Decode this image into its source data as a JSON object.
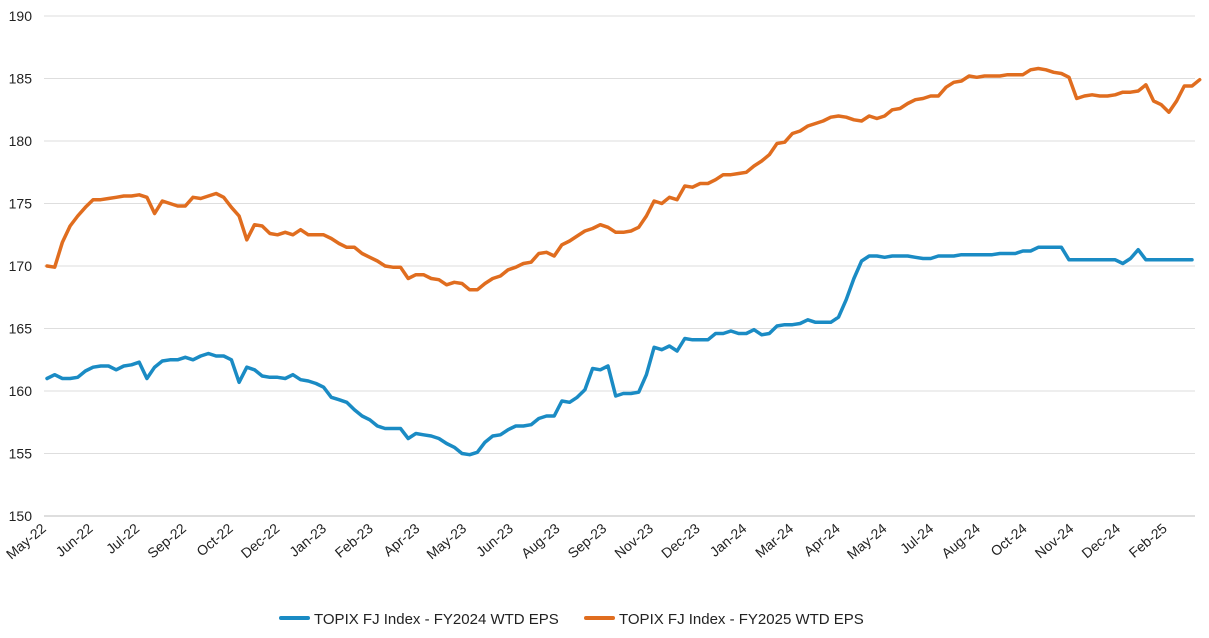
{
  "chart_data": {
    "type": "line",
    "title": "",
    "xlabel": "",
    "ylabel": "",
    "ylim": [
      150,
      190
    ],
    "yticks": [
      150,
      155,
      160,
      165,
      170,
      175,
      180,
      185,
      190
    ],
    "grid": "horizontal",
    "legend_position": "bottom-center",
    "x_tick_labels": [
      "May-22",
      "Jun-22",
      "Jul-22",
      "Sep-22",
      "Oct-22",
      "Dec-22",
      "Jan-23",
      "Feb-23",
      "Apr-23",
      "May-23",
      "Jun-23",
      "Aug-23",
      "Sep-23",
      "Nov-23",
      "Dec-23",
      "Jan-24",
      "Mar-24",
      "Apr-24",
      "May-24",
      "Jul-24",
      "Aug-24",
      "Oct-24",
      "Nov-24",
      "Dec-24",
      "Feb-25"
    ],
    "series": [
      {
        "name": "TOPIX FJ Index - FY2024 WTD EPS",
        "color": "#1a8bc4",
        "values": [
          161.0,
          161.3,
          161.0,
          161.0,
          161.1,
          161.6,
          161.9,
          162.0,
          162.0,
          161.7,
          162.0,
          162.1,
          162.3,
          161.0,
          161.9,
          162.4,
          162.5,
          162.5,
          162.7,
          162.5,
          162.8,
          163.0,
          162.8,
          162.8,
          162.5,
          160.7,
          161.9,
          161.7,
          161.2,
          161.1,
          161.1,
          161.0,
          161.3,
          160.9,
          160.8,
          160.6,
          160.3,
          159.5,
          159.3,
          159.1,
          158.5,
          158.0,
          157.7,
          157.2,
          157.0,
          157.0,
          157.0,
          156.2,
          156.6,
          156.5,
          156.4,
          156.2,
          155.8,
          155.5,
          155.0,
          154.9,
          155.1,
          155.9,
          156.4,
          156.5,
          156.9,
          157.2,
          157.2,
          157.3,
          157.8,
          158.0,
          158.0,
          159.2,
          159.1,
          159.5,
          160.1,
          161.8,
          161.7,
          162.0,
          159.6,
          159.8,
          159.8,
          159.9,
          161.3,
          163.5,
          163.3,
          163.6,
          163.2,
          164.2,
          164.1,
          164.1,
          164.1,
          164.6,
          164.6,
          164.8,
          164.6,
          164.6,
          164.9,
          164.5,
          164.6,
          165.2,
          165.3,
          165.3,
          165.4,
          165.7,
          165.5,
          165.5,
          165.5,
          165.9,
          167.3,
          169.0,
          170.4,
          170.8,
          170.8,
          170.7,
          170.8,
          170.8,
          170.8,
          170.7,
          170.6,
          170.6,
          170.8,
          170.8,
          170.8,
          170.9,
          170.9,
          170.9,
          170.9,
          170.9,
          171.0,
          171.0,
          171.0,
          171.2,
          171.2,
          171.5,
          171.5,
          171.5,
          171.5,
          170.5,
          170.5,
          170.5,
          170.5,
          170.5,
          170.5,
          170.5,
          170.2,
          170.6,
          171.3,
          170.5,
          170.5,
          170.5,
          170.5,
          170.5,
          170.5,
          170.5
        ]
      },
      {
        "name": "TOPIX FJ Index - FY2025 WTD EPS",
        "color": "#e06d1f",
        "values": [
          170.0,
          169.9,
          171.9,
          173.2,
          174.0,
          174.7,
          175.3,
          175.3,
          175.4,
          175.5,
          175.6,
          175.6,
          175.7,
          175.5,
          174.2,
          175.2,
          175.0,
          174.8,
          174.8,
          175.5,
          175.4,
          175.6,
          175.8,
          175.5,
          174.7,
          174.0,
          172.1,
          173.3,
          173.2,
          172.6,
          172.5,
          172.7,
          172.5,
          172.9,
          172.5,
          172.5,
          172.5,
          172.2,
          171.8,
          171.5,
          171.5,
          171.0,
          170.7,
          170.4,
          170.0,
          169.9,
          169.9,
          169.0,
          169.3,
          169.3,
          169.0,
          168.9,
          168.5,
          168.7,
          168.6,
          168.1,
          168.1,
          168.6,
          169.0,
          169.2,
          169.7,
          169.9,
          170.2,
          170.3,
          171.0,
          171.1,
          170.8,
          171.7,
          172.0,
          172.4,
          172.8,
          173.0,
          173.3,
          173.1,
          172.7,
          172.7,
          172.8,
          173.1,
          174.0,
          175.2,
          175.0,
          175.5,
          175.3,
          176.4,
          176.3,
          176.6,
          176.6,
          176.9,
          177.3,
          177.3,
          177.4,
          177.5,
          178.0,
          178.4,
          178.9,
          179.8,
          179.9,
          180.6,
          180.8,
          181.2,
          181.4,
          181.6,
          181.9,
          182.0,
          181.9,
          181.7,
          181.6,
          182.0,
          181.8,
          182.0,
          182.5,
          182.6,
          183.0,
          183.3,
          183.4,
          183.6,
          183.6,
          184.3,
          184.7,
          184.8,
          185.2,
          185.1,
          185.2,
          185.2,
          185.2,
          185.3,
          185.3,
          185.3,
          185.7,
          185.8,
          185.7,
          185.5,
          185.4,
          185.1,
          183.4,
          183.6,
          183.7,
          183.6,
          183.6,
          183.7,
          183.9,
          183.9,
          184.0,
          184.5,
          183.2,
          182.9,
          182.3,
          183.2,
          184.4,
          184.4,
          184.9
        ]
      }
    ]
  }
}
